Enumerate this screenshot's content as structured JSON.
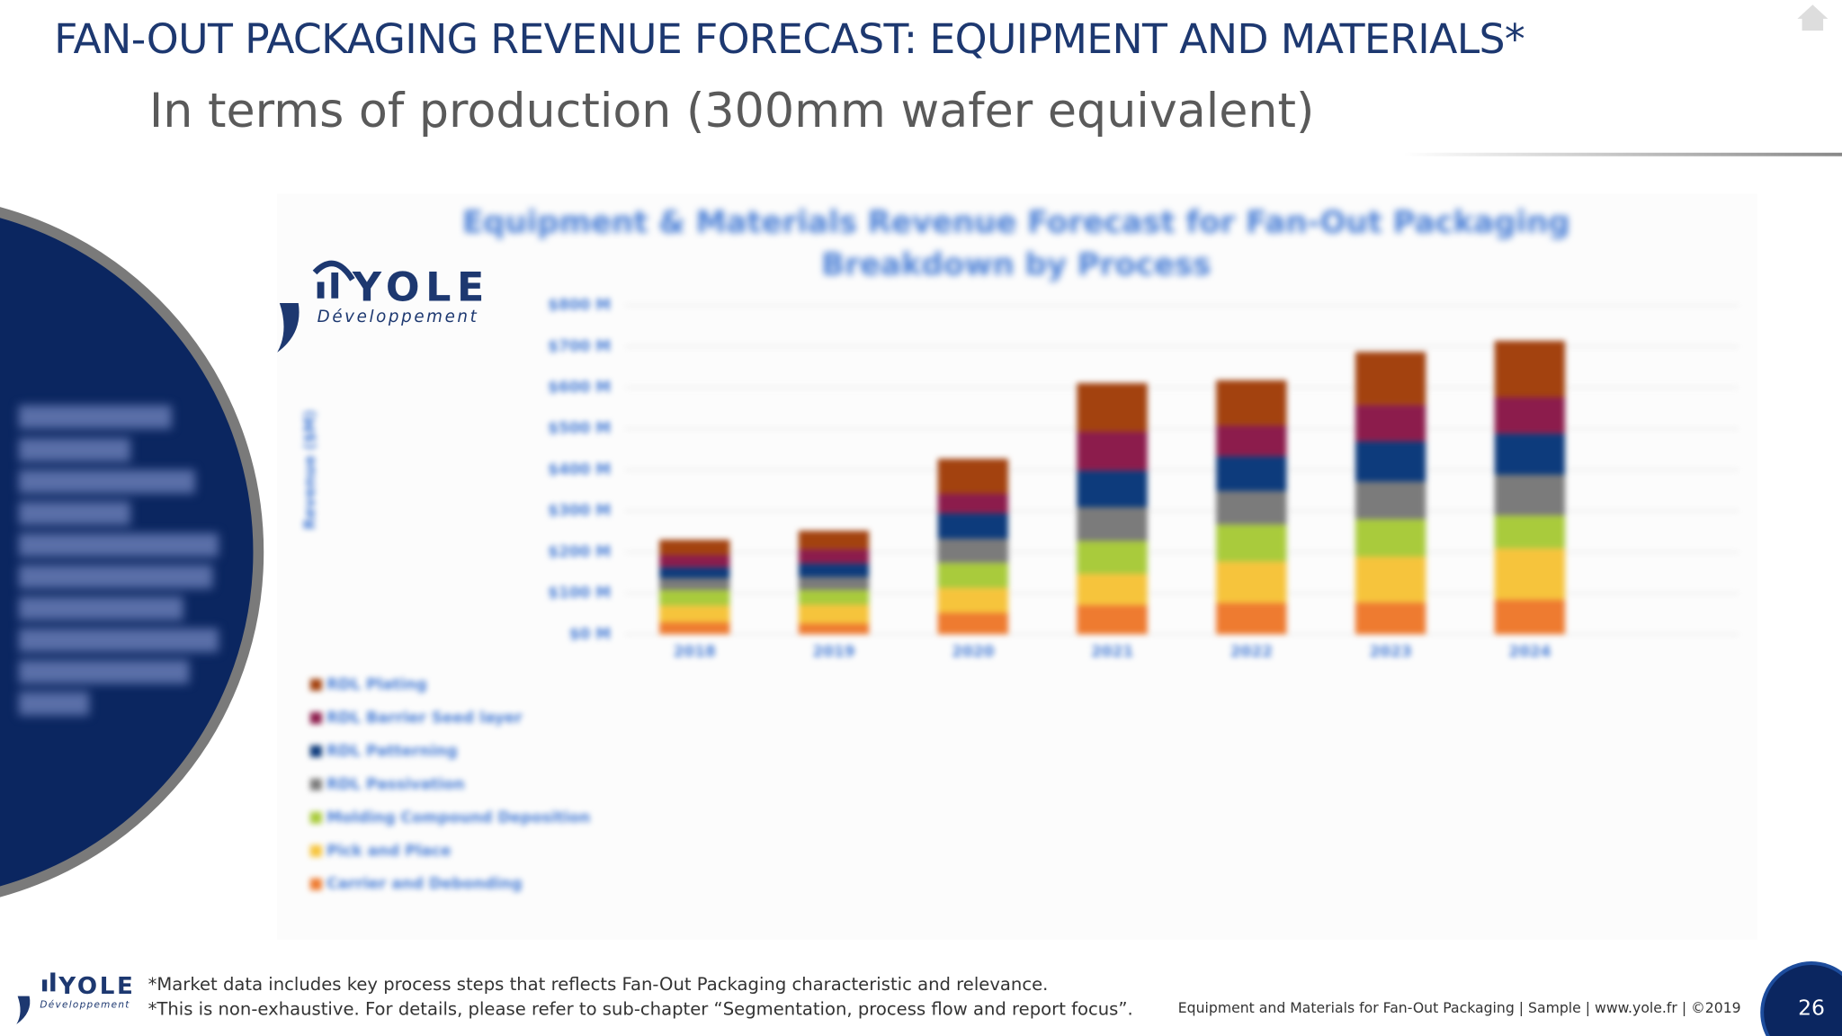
{
  "header": {
    "title": "FAN-OUT PACKAGING REVENUE FORECAST: EQUIPMENT AND MATERIALS*",
    "subtitle": "In terms of production (300mm wafer equivalent)"
  },
  "logo": {
    "name": "YOLE",
    "tagline": "Développement"
  },
  "chart_data": {
    "type": "bar",
    "stacked": true,
    "title": "Equipment & Materials Revenue Forecast for Fan-Out Packaging Breakdown by Process",
    "y_label": "Revenue ($M)",
    "categories": [
      "2018",
      "2019",
      "2020",
      "2021",
      "2022",
      "2023",
      "2024"
    ],
    "series": [
      {
        "name": "RDL Plating",
        "color": "#a3420f",
        "values": [
          37,
          45,
          85,
          118,
          110,
          129,
          137
        ]
      },
      {
        "name": "RDL Barrier Seed layer",
        "color": "#8c1c4c",
        "values": [
          30,
          35,
          48,
          95,
          75,
          89,
          89
        ]
      },
      {
        "name": "RDL Patterning",
        "color": "#0d3b7c",
        "values": [
          27,
          33,
          62,
          89,
          85,
          98,
          100
        ]
      },
      {
        "name": "RDL Passivation",
        "color": "#7b7b7b",
        "values": [
          28,
          31,
          58,
          82,
          81,
          91,
          99
        ]
      },
      {
        "name": "Molding Compound Deposition",
        "color": "#a9cb3c",
        "values": [
          38,
          36,
          61,
          80,
          90,
          91,
          80
        ]
      },
      {
        "name": "Pick and Place",
        "color": "#f6c43c",
        "values": [
          41,
          46,
          61,
          76,
          101,
          112,
          125
        ]
      },
      {
        "name": "Carrier and Debonding",
        "color": "#ee7b30",
        "values": [
          29,
          26,
          52,
          71,
          76,
          77,
          84
        ]
      }
    ],
    "ylim": [
      0,
      800
    ],
    "yticks": [
      {
        "value": 0,
        "label": "$0 M"
      },
      {
        "value": 100,
        "label": "$100 M"
      },
      {
        "value": 200,
        "label": "$200 M"
      },
      {
        "value": 300,
        "label": "$300 M"
      },
      {
        "value": 400,
        "label": "$400 M"
      },
      {
        "value": 500,
        "label": "$500 M"
      },
      {
        "value": 600,
        "label": "$600 M"
      },
      {
        "value": 700,
        "label": "$700 M"
      },
      {
        "value": 800,
        "label": "$800 M"
      }
    ],
    "grid": true
  },
  "footnotes": [
    "*Market data includes key process steps that reflects Fan-Out Packaging characteristic and relevance.",
    "*This is non-exhaustive. For details, please refer to sub-chapter “Segmentation, process flow and report focus”."
  ],
  "footer": "Equipment and Materials for Fan-Out Packaging | Sample | www.yole.fr | ©2019",
  "page_number": "26"
}
